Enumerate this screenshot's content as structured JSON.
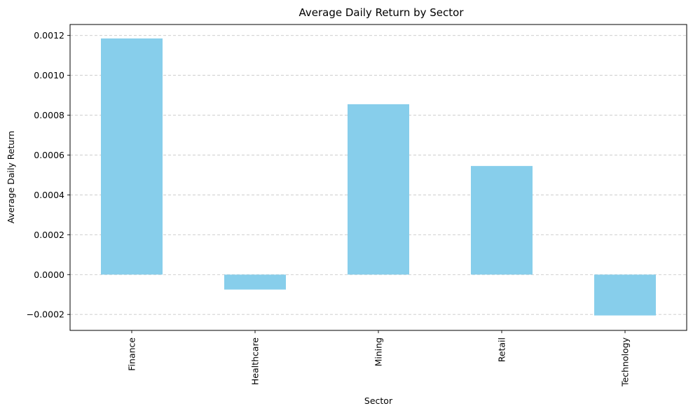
{
  "colors": {
    "bar": "#87ceeb",
    "grid": "#c8c8c8",
    "axis": "#000000"
  },
  "chart_data": {
    "type": "bar",
    "title": "Average Daily Return by Sector",
    "xlabel": "Sector",
    "ylabel": "Average Daily Return",
    "categories": [
      "Finance",
      "Healthcare",
      "Mining",
      "Retail",
      "Technology"
    ],
    "values": [
      0.001185,
      -7.5e-05,
      0.000855,
      0.000545,
      -0.000205
    ],
    "ylim": [
      -0.00028,
      0.001255
    ],
    "yticks": [
      -0.0002,
      0.0,
      0.0002,
      0.0004,
      0.0006,
      0.0008,
      0.001,
      0.0012
    ],
    "ytick_labels": [
      "−0.0002",
      "0.0000",
      "0.0002",
      "0.0004",
      "0.0006",
      "0.0008",
      "0.0010",
      "0.0012"
    ],
    "grid": "y-dashed",
    "legend": "none"
  }
}
